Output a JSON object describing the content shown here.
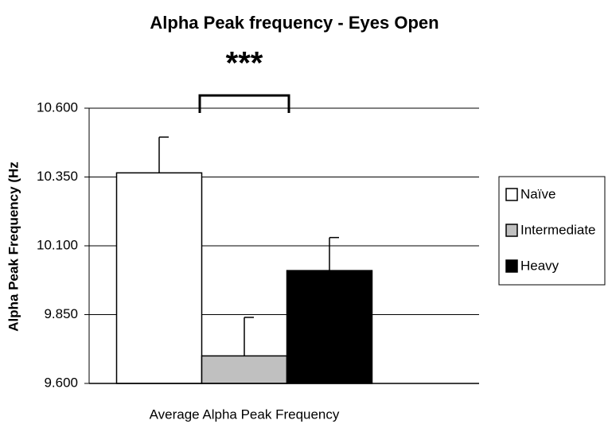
{
  "chart_data": {
    "type": "bar",
    "title": "Alpha Peak frequency - Eyes Open",
    "annotation": "***",
    "y_label": "Alpha Peak Frequency (Hz",
    "categories": [
      "Average Alpha Peak Frequency"
    ],
    "series": [
      {
        "name": "Naïve",
        "color": "#ffffff",
        "values": [
          10.365
        ],
        "errors": [
          0.13
        ]
      },
      {
        "name": "Intermediate",
        "color": "#c0c0c0",
        "values": [
          9.7
        ],
        "errors": [
          0.14
        ]
      },
      {
        "name": "Heavy",
        "color": "#000000",
        "values": [
          10.01
        ],
        "errors": [
          0.12
        ]
      }
    ],
    "ylim": [
      9.6,
      10.6
    ],
    "yticks": [
      {
        "value": 9.6,
        "label": "9.600"
      },
      {
        "value": 9.85,
        "label": "9.850"
      },
      {
        "value": 10.1,
        "label": "10.100"
      },
      {
        "value": 10.35,
        "label": "10.350"
      },
      {
        "value": 10.6,
        "label": "10.600"
      }
    ],
    "grid": true,
    "legend": "right"
  }
}
